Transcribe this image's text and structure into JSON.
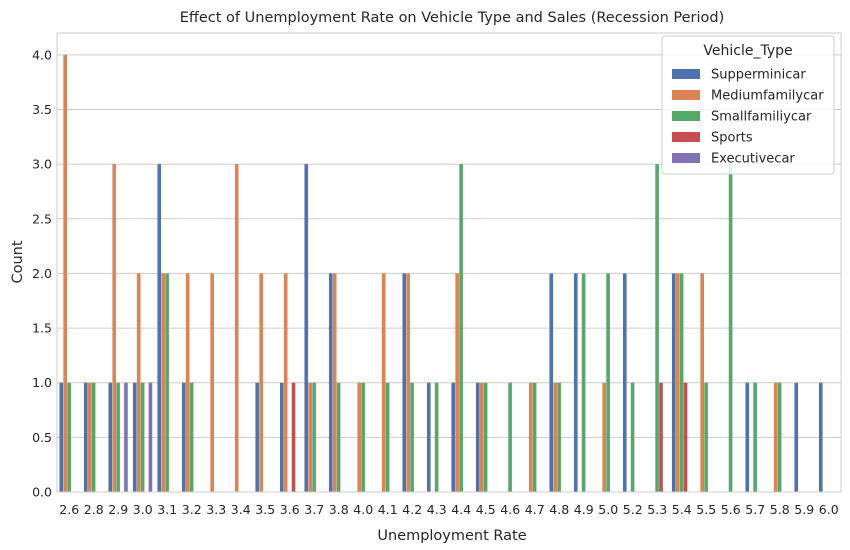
{
  "chart_data": {
    "type": "bar",
    "title": "Effect of Unemployment Rate on Vehicle Type and Sales (Recession Period)",
    "xlabel": "Unemployment Rate",
    "ylabel": "Count",
    "ylim": [
      0,
      4.2
    ],
    "yticks": [
      "0.0",
      "0.5",
      "1.0",
      "1.5",
      "2.0",
      "2.5",
      "3.0",
      "3.5",
      "4.0"
    ],
    "grid": true,
    "legend": {
      "title": "Vehicle_Type",
      "placement": "top-right"
    },
    "categories": [
      "2.6",
      "2.8",
      "2.9",
      "3.0",
      "3.1",
      "3.2",
      "3.3",
      "3.4",
      "3.5",
      "3.6",
      "3.7",
      "3.8",
      "4.0",
      "4.1",
      "4.2",
      "4.3",
      "4.4",
      "4.5",
      "4.6",
      "4.7",
      "4.8",
      "4.9",
      "5.0",
      "5.2",
      "5.3",
      "5.4",
      "5.5",
      "5.6",
      "5.7",
      "5.8",
      "5.9",
      "6.0"
    ],
    "series": [
      {
        "name": "Supperminicar",
        "color": "#4c72b0",
        "values": [
          1,
          1,
          1,
          1,
          3,
          1,
          0,
          0,
          1,
          1,
          3,
          2,
          0,
          0,
          2,
          1,
          1,
          1,
          0,
          0,
          2,
          2,
          0,
          2,
          0,
          2,
          0,
          0,
          1,
          0,
          1,
          1
        ]
      },
      {
        "name": "Mediumfamilycar",
        "color": "#dd8452",
        "values": [
          4,
          1,
          3,
          2,
          2,
          2,
          2,
          3,
          2,
          2,
          1,
          2,
          1,
          2,
          2,
          0,
          2,
          1,
          0,
          1,
          1,
          0,
          1,
          0,
          0,
          2,
          2,
          0,
          0,
          1,
          0,
          0
        ]
      },
      {
        "name": "Smallfamiliycar",
        "color": "#55a868",
        "values": [
          1,
          1,
          1,
          1,
          2,
          1,
          0,
          0,
          0,
          0,
          1,
          1,
          1,
          1,
          1,
          1,
          3,
          1,
          1,
          1,
          1,
          2,
          2,
          1,
          3,
          2,
          1,
          3,
          1,
          1,
          0,
          0
        ]
      },
      {
        "name": "Sports",
        "color": "#c44e52",
        "values": [
          0,
          0,
          0,
          0,
          0,
          0,
          0,
          0,
          0,
          1,
          0,
          0,
          0,
          0,
          0,
          0,
          0,
          0,
          0,
          0,
          0,
          0,
          0,
          0,
          1,
          1,
          0,
          0,
          0,
          0,
          0,
          0
        ]
      },
      {
        "name": "Executivecar",
        "color": "#8172b3",
        "values": [
          0,
          0,
          1,
          1,
          0,
          0,
          0,
          0,
          0,
          0,
          0,
          0,
          0,
          0,
          0,
          0,
          0,
          0,
          0,
          0,
          0,
          0,
          0,
          0,
          0,
          0,
          0,
          0,
          0,
          0,
          0,
          0
        ]
      }
    ]
  }
}
